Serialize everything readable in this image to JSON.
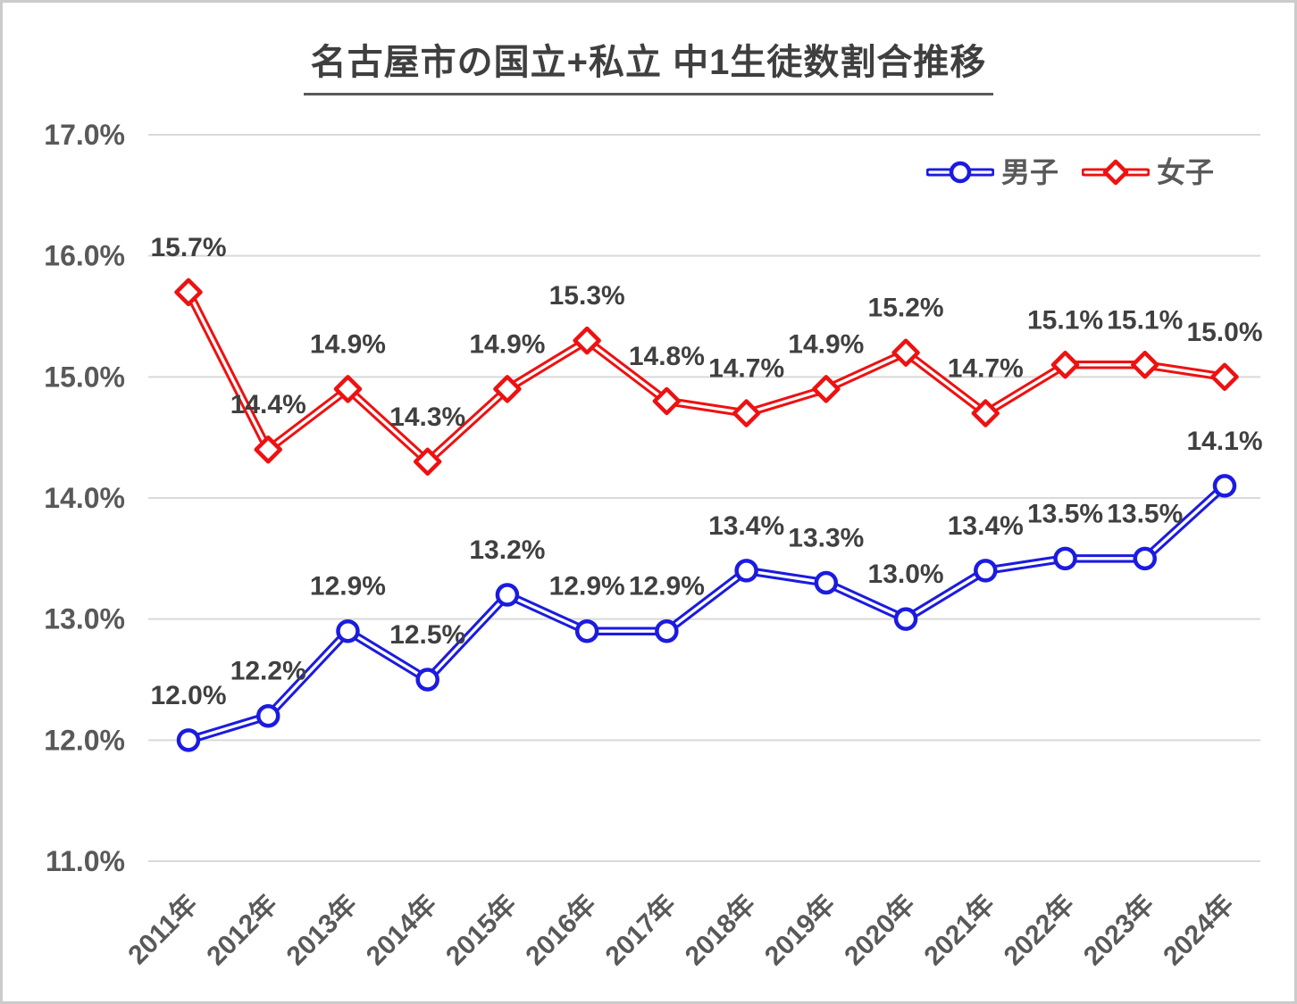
{
  "chart_data": {
    "type": "line",
    "title": "名古屋市の国立+私立 中1生徒数割合推移",
    "categories": [
      "2011年",
      "2012年",
      "2013年",
      "2014年",
      "2015年",
      "2016年",
      "2017年",
      "2018年",
      "2019年",
      "2020年",
      "2021年",
      "2022年",
      "2023年",
      "2024年"
    ],
    "series": [
      {
        "key": "boys",
        "name": "男子",
        "color": "#1b1be0",
        "marker": "circle",
        "values": [
          12.0,
          12.2,
          12.9,
          12.5,
          13.2,
          12.9,
          12.9,
          13.4,
          13.3,
          13.0,
          13.4,
          13.5,
          13.5,
          14.1
        ],
        "labels": [
          "12.0%",
          "12.2%",
          "12.9%",
          "12.5%",
          "13.2%",
          "12.9%",
          "12.9%",
          "13.4%",
          "13.3%",
          "13.0%",
          "13.4%",
          "13.5%",
          "13.5%",
          "14.1%"
        ]
      },
      {
        "key": "girls",
        "name": "女子",
        "color": "#ee1111",
        "marker": "diamond",
        "values": [
          15.7,
          14.4,
          14.9,
          14.3,
          14.9,
          15.3,
          14.8,
          14.7,
          14.9,
          15.2,
          14.7,
          15.1,
          15.1,
          15.0
        ],
        "labels": [
          "15.7%",
          "14.4%",
          "14.9%",
          "14.3%",
          "14.9%",
          "15.3%",
          "14.8%",
          "14.7%",
          "14.9%",
          "15.2%",
          "14.7%",
          "15.1%",
          "15.1%",
          "15.0%"
        ]
      }
    ],
    "ylim": [
      11,
      17
    ],
    "yticks": [
      "11.0%",
      "12.0%",
      "13.0%",
      "14.0%",
      "15.0%",
      "16.0%",
      "17.0%"
    ],
    "xlabel": "",
    "ylabel": "",
    "grid": true,
    "legend_position": "top-right",
    "colors": {
      "gridline": "#d9d9d9",
      "axis_text": "#595959",
      "data_label_text": "#404040",
      "title_text": "#3f3f3f",
      "marker_fill": "#ffffff",
      "frame_border": "#cbcbcb"
    }
  }
}
